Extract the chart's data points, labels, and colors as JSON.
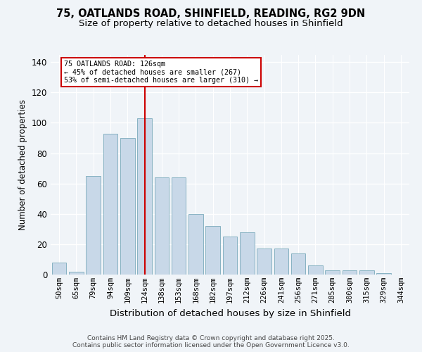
{
  "title_line1": "75, OATLANDS ROAD, SHINFIELD, READING, RG2 9DN",
  "title_line2": "Size of property relative to detached houses in Shinfield",
  "xlabel": "Distribution of detached houses by size in Shinfield",
  "ylabel": "Number of detached properties",
  "bar_labels": [
    "50sqm",
    "65sqm",
    "79sqm",
    "94sqm",
    "109sqm",
    "124sqm",
    "138sqm",
    "153sqm",
    "168sqm",
    "182sqm",
    "197sqm",
    "212sqm",
    "226sqm",
    "241sqm",
    "256sqm",
    "271sqm",
    "285sqm",
    "300sqm",
    "315sqm",
    "329sqm",
    "344sqm"
  ],
  "bar_values": [
    8,
    2,
    65,
    93,
    90,
    103,
    64,
    64,
    40,
    32,
    25,
    28,
    17,
    17,
    14,
    6,
    3,
    3,
    3,
    1,
    0
  ],
  "bar_color": "#c8d8e8",
  "bar_edgecolor": "#7aaabb",
  "vline_x": 5,
  "vline_color": "#cc0000",
  "annotation_text": "75 OATLANDS ROAD: 126sqm\n← 45% of detached houses are smaller (267)\n53% of semi-detached houses are larger (310) →",
  "annotation_box_edgecolor": "#cc0000",
  "annotation_box_facecolor": "#ffffff",
  "ylim": [
    0,
    145
  ],
  "yticks": [
    0,
    20,
    40,
    60,
    80,
    100,
    120,
    140
  ],
  "footer_line1": "Contains HM Land Registry data © Crown copyright and database right 2025.",
  "footer_line2": "Contains public sector information licensed under the Open Government Licence v3.0.",
  "bg_color": "#f0f4f8",
  "plot_bg_color": "#f0f4f8",
  "grid_color": "#ffffff",
  "title_fontsize": 10.5,
  "subtitle_fontsize": 9.5,
  "label_fontsize": 7.5,
  "footer_fontsize": 6.5
}
